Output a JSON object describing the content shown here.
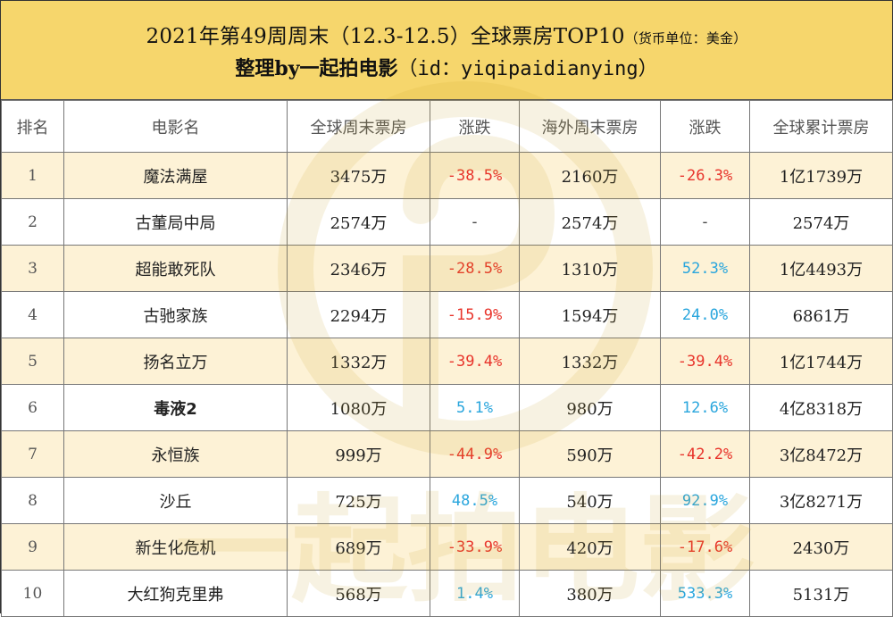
{
  "header": {
    "title": "2021年第49周周末（12.3-12.5）全球票房TOP10",
    "unit": "（货币单位：美金）",
    "credit_prefix": "整理by一起拍电影",
    "credit_handle": "（id：yiqipaidianying）"
  },
  "columns": [
    "排名",
    "电影名",
    "全球周末票房",
    "涨跌",
    "海外周末票房",
    "涨跌",
    "全球累计票房"
  ],
  "rows": [
    {
      "rank": "1",
      "name": "魔法满屋",
      "global_weekend": "3475万",
      "global_change": "-38.5%",
      "overseas_weekend": "2160万",
      "overseas_change": "-26.3%",
      "cumulative": "1亿1739万"
    },
    {
      "rank": "2",
      "name": "古董局中局",
      "global_weekend": "2574万",
      "global_change": "-",
      "overseas_weekend": "2574万",
      "overseas_change": "-",
      "cumulative": "2574万"
    },
    {
      "rank": "3",
      "name": "超能敢死队",
      "global_weekend": "2346万",
      "global_change": "-28.5%",
      "overseas_weekend": "1310万",
      "overseas_change": "52.3%",
      "cumulative": "1亿4493万"
    },
    {
      "rank": "4",
      "name": "古驰家族",
      "global_weekend": "2294万",
      "global_change": "-15.9%",
      "overseas_weekend": "1594万",
      "overseas_change": "24.0%",
      "cumulative": "6861万"
    },
    {
      "rank": "5",
      "name": "扬名立万",
      "global_weekend": "1332万",
      "global_change": "-39.4%",
      "overseas_weekend": "1332万",
      "overseas_change": "-39.4%",
      "cumulative": "1亿1744万"
    },
    {
      "rank": "6",
      "name": "毒液2",
      "global_weekend": "1080万",
      "global_change": "5.1%",
      "overseas_weekend": "980万",
      "overseas_change": "12.6%",
      "cumulative": "4亿8318万"
    },
    {
      "rank": "7",
      "name": "永恒族",
      "global_weekend": "999万",
      "global_change": "-44.9%",
      "overseas_weekend": "590万",
      "overseas_change": "-42.2%",
      "cumulative": "3亿8472万"
    },
    {
      "rank": "8",
      "name": "沙丘",
      "global_weekend": "725万",
      "global_change": "48.5%",
      "overseas_weekend": "540万",
      "overseas_change": "92.9%",
      "cumulative": "3亿8271万"
    },
    {
      "rank": "9",
      "name": "新生化危机",
      "global_weekend": "689万",
      "global_change": "-33.9%",
      "overseas_weekend": "420万",
      "overseas_change": "-17.6%",
      "cumulative": "2430万"
    },
    {
      "rank": "10",
      "name": "大红狗克里弗",
      "global_weekend": "568万",
      "global_change": "1.4%",
      "overseas_weekend": "380万",
      "overseas_change": "533.3%",
      "cumulative": "5131万"
    }
  ],
  "colors": {
    "header_bg": "#f6d66c",
    "odd_row_bg": "#fdf2d6",
    "negative": "#e8342b",
    "positive": "#2aa6dd"
  },
  "watermark": {
    "text": "一起拍电影",
    "icon": "camera-logo-icon"
  }
}
